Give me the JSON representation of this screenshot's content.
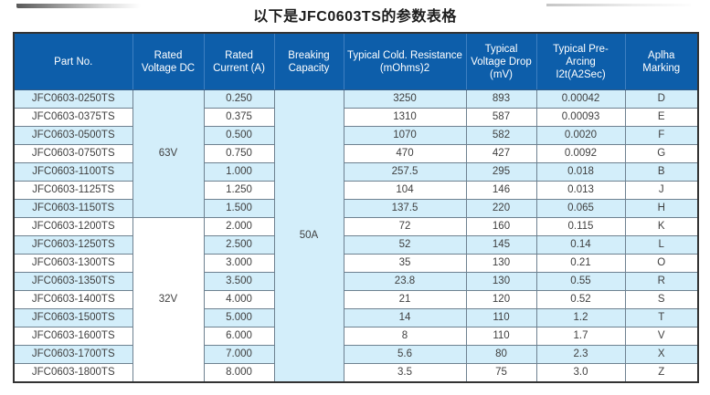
{
  "title": "以下是JFC0603TS的参数表格",
  "colors": {
    "header_bg": "#0d5eaa",
    "header_text": "#ffffff",
    "row_alt_bg": "#d3eefa",
    "row_bg": "#ffffff",
    "grid_border": "#6e8190",
    "outer_border": "#333333",
    "body_text": "#3f3f3f"
  },
  "table": {
    "columns": [
      "Part No.",
      "Rated Voltage DC",
      "Rated Current (A)",
      "Breaking Capacity",
      "Typical Cold. Resistance (mOhms)2",
      "Typical Voltage Drop (mV)",
      "Typical Pre-Arcing I2t(A2Sec)",
      "Aplha Marking"
    ],
    "voltage_groups": [
      {
        "label": "63V",
        "row_count": 7
      },
      {
        "label": "32V",
        "row_count": 9
      }
    ],
    "breaking_capacity": {
      "label": "50A",
      "row_count": 16
    },
    "rows": [
      {
        "part_no": "JFC0603-0250TS",
        "rated_current": "0.250",
        "cold_resistance": "3250",
        "voltage_drop": "893",
        "pre_arcing_i2t": "0.00042",
        "alpha_marking": "D"
      },
      {
        "part_no": "JFC0603-0375TS",
        "rated_current": "0.375",
        "cold_resistance": "1310",
        "voltage_drop": "587",
        "pre_arcing_i2t": "0.00093",
        "alpha_marking": "E"
      },
      {
        "part_no": "JFC0603-0500TS",
        "rated_current": "0.500",
        "cold_resistance": "1070",
        "voltage_drop": "582",
        "pre_arcing_i2t": "0.0020",
        "alpha_marking": "F"
      },
      {
        "part_no": "JFC0603-0750TS",
        "rated_current": "0.750",
        "cold_resistance": "470",
        "voltage_drop": "427",
        "pre_arcing_i2t": "0.0092",
        "alpha_marking": "G"
      },
      {
        "part_no": "JFC0603-1100TS",
        "rated_current": "1.000",
        "cold_resistance": "257.5",
        "voltage_drop": "295",
        "pre_arcing_i2t": "0.018",
        "alpha_marking": "B"
      },
      {
        "part_no": "JFC0603-1125TS",
        "rated_current": "1.250",
        "cold_resistance": "104",
        "voltage_drop": "146",
        "pre_arcing_i2t": "0.013",
        "alpha_marking": "J"
      },
      {
        "part_no": "JFC0603-1150TS",
        "rated_current": "1.500",
        "cold_resistance": "137.5",
        "voltage_drop": "220",
        "pre_arcing_i2t": "0.065",
        "alpha_marking": "H"
      },
      {
        "part_no": "JFC0603-1200TS",
        "rated_current": "2.000",
        "cold_resistance": "72",
        "voltage_drop": "160",
        "pre_arcing_i2t": "0.115",
        "alpha_marking": "K"
      },
      {
        "part_no": "JFC0603-1250TS",
        "rated_current": "2.500",
        "cold_resistance": "52",
        "voltage_drop": "145",
        "pre_arcing_i2t": "0.14",
        "alpha_marking": "L"
      },
      {
        "part_no": "JFC0603-1300TS",
        "rated_current": "3.000",
        "cold_resistance": "35",
        "voltage_drop": "130",
        "pre_arcing_i2t": "0.21",
        "alpha_marking": "O"
      },
      {
        "part_no": "JFC0603-1350TS",
        "rated_current": "3.500",
        "cold_resistance": "23.8",
        "voltage_drop": "130",
        "pre_arcing_i2t": "0.55",
        "alpha_marking": "R"
      },
      {
        "part_no": "JFC0603-1400TS",
        "rated_current": "4.000",
        "cold_resistance": "21",
        "voltage_drop": "120",
        "pre_arcing_i2t": "0.52",
        "alpha_marking": "S"
      },
      {
        "part_no": "JFC0603-1500TS",
        "rated_current": "5.000",
        "cold_resistance": "14",
        "voltage_drop": "110",
        "pre_arcing_i2t": "1.2",
        "alpha_marking": "T"
      },
      {
        "part_no": "JFC0603-1600TS",
        "rated_current": "6.000",
        "cold_resistance": "8",
        "voltage_drop": "110",
        "pre_arcing_i2t": "1.7",
        "alpha_marking": "V"
      },
      {
        "part_no": "JFC0603-1700TS",
        "rated_current": "7.000",
        "cold_resistance": "5.6",
        "voltage_drop": "80",
        "pre_arcing_i2t": "2.3",
        "alpha_marking": "X"
      },
      {
        "part_no": "JFC0603-1800TS",
        "rated_current": "8.000",
        "cold_resistance": "3.5",
        "voltage_drop": "75",
        "pre_arcing_i2t": "3.0",
        "alpha_marking": "Z"
      }
    ]
  }
}
